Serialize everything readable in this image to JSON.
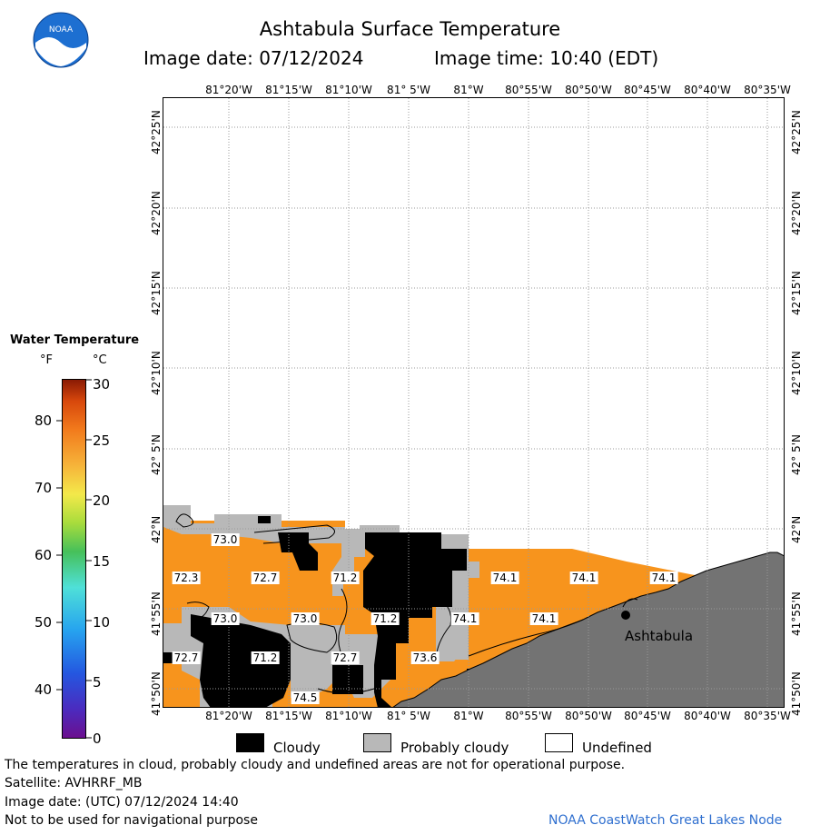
{
  "header": {
    "title": "Ashtabula Surface Temperature",
    "image_date": "Image date: 07/12/2024",
    "image_time": "Image time: 10:40 (EDT)",
    "logo_text": "NOAA"
  },
  "map": {
    "lon_labels": [
      "81°20'W",
      "81°15'W",
      "81°10'W",
      "81° 5'W",
      "81°W",
      "80°55'W",
      "80°50'W",
      "80°45'W",
      "80°40'W",
      "80°35'W"
    ],
    "lat_labels": [
      "42°25'N",
      "42°20'N",
      "42°15'N",
      "42°10'N",
      "42° 5'N",
      "42°N",
      "41°55'N",
      "41°50'N"
    ],
    "city_label": "Ashtabula",
    "temp_labels": [
      "73.0",
      "72.3",
      "72.7",
      "71.2",
      "74.1",
      "74.1",
      "74.1",
      "73.0",
      "73.0",
      "71.2",
      "74.1",
      "74.1",
      "72.7",
      "71.2",
      "72.7",
      "73.6",
      "74.5"
    ],
    "colors": {
      "water": "#f7941d",
      "cloudy": "#000000",
      "probably_cloudy": "#b8b8b8",
      "land": "#737373",
      "grid": "#9a9a9a"
    }
  },
  "legend": {
    "title": "Water Temperature",
    "unit_f": "°F",
    "unit_c": "°C",
    "f_ticks": [
      "80",
      "70",
      "60",
      "50",
      "40"
    ],
    "c_ticks": [
      "30",
      "25",
      "20",
      "15",
      "10",
      "5",
      "0"
    ],
    "cloudy": "Cloudy",
    "probably_cloudy": "Probably cloudy",
    "undefined": "Undefined"
  },
  "footer": {
    "disclaimer": "The temperatures in cloud, probably cloudy and undefined areas are not for operational purpose.",
    "satellite": "Satellite: AVHRRF_MB",
    "utc_date": "Image date: (UTC) 07/12/2024  14:40",
    "nav_warning": "Not to be used for navigational purpose",
    "credit": "NOAA CoastWatch Great Lakes Node"
  }
}
